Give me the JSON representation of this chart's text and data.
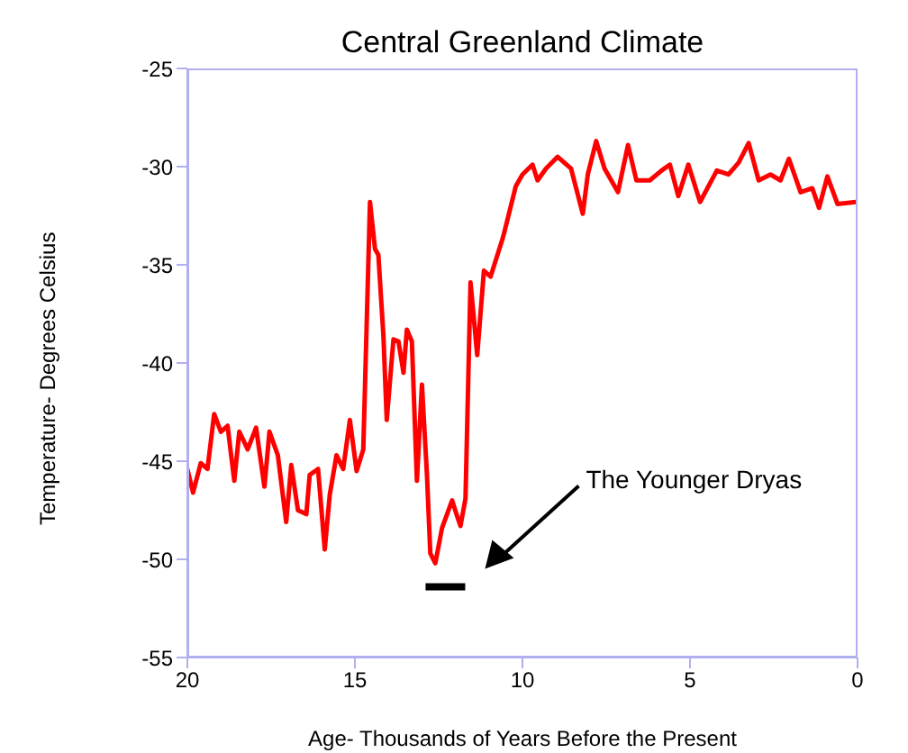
{
  "chart_data": {
    "type": "line",
    "title": "Central Greenland Climate",
    "xlabel": "Age- Thousands of Years Before the Present",
    "ylabel": "Temperature- Degrees Celsius",
    "xlim": [
      20,
      0
    ],
    "xticks": [
      20,
      15,
      10,
      5,
      0
    ],
    "ylim": [
      -55,
      -25
    ],
    "yticks": [
      -55,
      -50,
      -45,
      -40,
      -35,
      -30,
      -25
    ],
    "grid": false,
    "legend": false,
    "marker": "none",
    "line_style": "solid",
    "annotations": [
      "The Younger Dryas"
    ],
    "series": [
      {
        "color": "#ff0000",
        "x": [
          20,
          19.83,
          19.6,
          19.4,
          19.2,
          19.0,
          18.8,
          18.6,
          18.45,
          18.2,
          17.95,
          17.7,
          17.55,
          17.3,
          17.05,
          16.9,
          16.7,
          16.45,
          16.35,
          16.1,
          15.9,
          15.75,
          15.55,
          15.35,
          15.15,
          14.95,
          14.75,
          14.55,
          14.4,
          14.3,
          14.15,
          14.05,
          13.85,
          13.7,
          13.55,
          13.45,
          13.3,
          13.15,
          13.0,
          12.85,
          12.75,
          12.6,
          12.4,
          12.25,
          12.1,
          11.95,
          11.85,
          11.7,
          11.55,
          11.35,
          11.15,
          10.95,
          10.6,
          10.55,
          10.2,
          10.0,
          9.7,
          9.55,
          9.3,
          8.95,
          8.55,
          8.2,
          8.05,
          7.8,
          7.55,
          7.15,
          6.85,
          6.6,
          6.2,
          5.85,
          5.6,
          5.35,
          5.05,
          4.7,
          4.2,
          3.85,
          3.55,
          3.25,
          2.95,
          2.6,
          2.3,
          2.05,
          1.7,
          1.35,
          1.15,
          0.9,
          0.6,
          0.05
        ],
        "values": [
          -45.4,
          -46.6,
          -45.1,
          -45.4,
          -42.6,
          -43.5,
          -43.2,
          -46.0,
          -43.5,
          -44.4,
          -43.3,
          -46.3,
          -43.5,
          -44.7,
          -48.1,
          -45.2,
          -47.5,
          -47.7,
          -45.7,
          -45.4,
          -49.5,
          -46.7,
          -44.7,
          -45.4,
          -42.9,
          -45.5,
          -44.4,
          -31.8,
          -34.2,
          -34.5,
          -38.6,
          -42.9,
          -38.8,
          -38.9,
          -40.5,
          -38.3,
          -38.9,
          -46.0,
          -41.1,
          -45.7,
          -49.7,
          -50.2,
          -48.4,
          -47.7,
          -47.0,
          -47.8,
          -48.3,
          -46.9,
          -35.9,
          -39.6,
          -35.3,
          -35.6,
          -33.7,
          -33.4,
          -31.0,
          -30.4,
          -29.9,
          -30.7,
          -30.1,
          -29.5,
          -30.1,
          -32.4,
          -30.4,
          -28.7,
          -30.1,
          -31.3,
          -28.9,
          -30.7,
          -30.7,
          -30.2,
          -29.9,
          -31.5,
          -29.9,
          -31.8,
          -30.2,
          -30.4,
          -29.8,
          -28.8,
          -30.7,
          -30.4,
          -30.7,
          -29.6,
          -31.3,
          -31.1,
          -32.1,
          -30.5,
          -31.9,
          -31.8
        ]
      }
    ]
  }
}
